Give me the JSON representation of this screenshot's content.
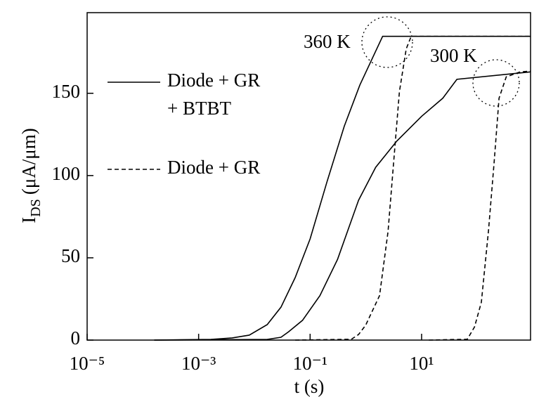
{
  "chart_data": {
    "type": "line",
    "xlabel": "t (s)",
    "ylabel": {
      "main": "I",
      "subscript": "DS",
      "unit": "(μA/μm)"
    },
    "xscale": "log",
    "xlim": [
      1e-05,
      900
    ],
    "ylim": [
      0,
      199
    ],
    "xticks": [
      {
        "value": 1e-05,
        "label": "10⁻⁵"
      },
      {
        "value": 0.001,
        "label": "10⁻³"
      },
      {
        "value": 0.1,
        "label": "10⁻¹"
      },
      {
        "value": 10,
        "label": "10¹"
      }
    ],
    "yticks": [
      0,
      50,
      100,
      150
    ],
    "color": "#000000",
    "legend": [
      {
        "lines": [
          "Diode + GR",
          "+ BTBT"
        ],
        "dashed": false
      },
      {
        "lines": [
          "Diode + GR"
        ],
        "dashed": true
      }
    ],
    "annotations": [
      "360 K",
      "300 K"
    ],
    "series": [
      {
        "legend": 0,
        "annotation": 0,
        "dashed": false,
        "x": [
          0.00016,
          0.00166,
          0.004,
          0.0081,
          0.017,
          0.03,
          0.054,
          0.1,
          0.2,
          0.41,
          0.78,
          2.0,
          900
        ],
        "values": [
          0,
          0.4,
          1.3,
          3,
          9.4,
          20,
          38,
          61.5,
          96,
          130,
          155,
          184.6,
          184.6
        ]
      },
      {
        "legend": 0,
        "annotation": 1,
        "dashed": false,
        "x": [
          0.00016,
          0.017,
          0.03,
          0.041,
          0.073,
          0.15,
          0.31,
          0.74,
          1.5,
          3.6,
          10,
          24,
          43,
          900
        ],
        "values": [
          0,
          0.4,
          1.7,
          5,
          12,
          27,
          49,
          85,
          105,
          121,
          136,
          147,
          158.5,
          163
        ]
      },
      {
        "legend": 1,
        "annotation": 0,
        "dashed": true,
        "x": [
          0.054,
          0.55,
          0.74,
          0.99,
          1.76,
          2.5,
          3.15,
          4.0,
          5.3,
          6.5,
          900
        ],
        "values": [
          0,
          0.5,
          3.4,
          9,
          27,
          66,
          108,
          151,
          177,
          184.6,
          184.6
        ]
      },
      {
        "legend": 1,
        "annotation": 1,
        "dashed": true,
        "x": [
          13.5,
          66,
          89,
          118,
          158,
          200,
          245,
          330,
          590,
          900
        ],
        "values": [
          0,
          0.5,
          8,
          23,
          66,
          108,
          147,
          160,
          163,
          163.5
        ]
      }
    ]
  }
}
